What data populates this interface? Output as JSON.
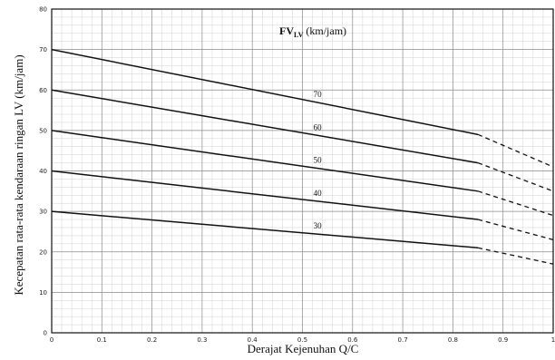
{
  "chart_data": {
    "type": "line",
    "legend_title": "FV",
    "legend_subscript": "LV",
    "legend_unit": " (km/jam)",
    "xlabel": "Derajat Kejenuhan Q/C",
    "ylabel": "Kecepatan rata-rata kendaraan ringan LV (km/jam)",
    "xlim": [
      0,
      1
    ],
    "ylim": [
      0,
      80
    ],
    "x_ticks": [
      "0",
      "0.1",
      "0.2",
      "0.3",
      "0.4",
      "0.5",
      "0.6",
      "0.7",
      "0.8",
      "0.9",
      "1"
    ],
    "y_ticks": [
      "0",
      "10",
      "20",
      "30",
      "40",
      "50",
      "60",
      "70",
      "80"
    ],
    "grid": true,
    "series": [
      {
        "name": "70",
        "solid": [
          [
            0,
            70
          ],
          [
            0.85,
            49
          ]
        ],
        "dashed": [
          [
            0.85,
            49
          ],
          [
            1,
            41
          ]
        ]
      },
      {
        "name": "60",
        "solid": [
          [
            0,
            60
          ],
          [
            0.85,
            42
          ]
        ],
        "dashed": [
          [
            0.85,
            42
          ],
          [
            1,
            35
          ]
        ]
      },
      {
        "name": "50",
        "solid": [
          [
            0,
            50
          ],
          [
            0.85,
            35
          ]
        ],
        "dashed": [
          [
            0.85,
            35
          ],
          [
            1,
            29
          ]
        ]
      },
      {
        "name": "40",
        "solid": [
          [
            0,
            40
          ],
          [
            0.85,
            28
          ]
        ],
        "dashed": [
          [
            0.85,
            28
          ],
          [
            1,
            23
          ]
        ]
      },
      {
        "name": "30",
        "solid": [
          [
            0,
            30
          ],
          [
            0.85,
            21
          ]
        ],
        "dashed": [
          [
            0.85,
            21
          ],
          [
            1,
            17
          ]
        ]
      }
    ],
    "series_label_x": 0.53
  }
}
